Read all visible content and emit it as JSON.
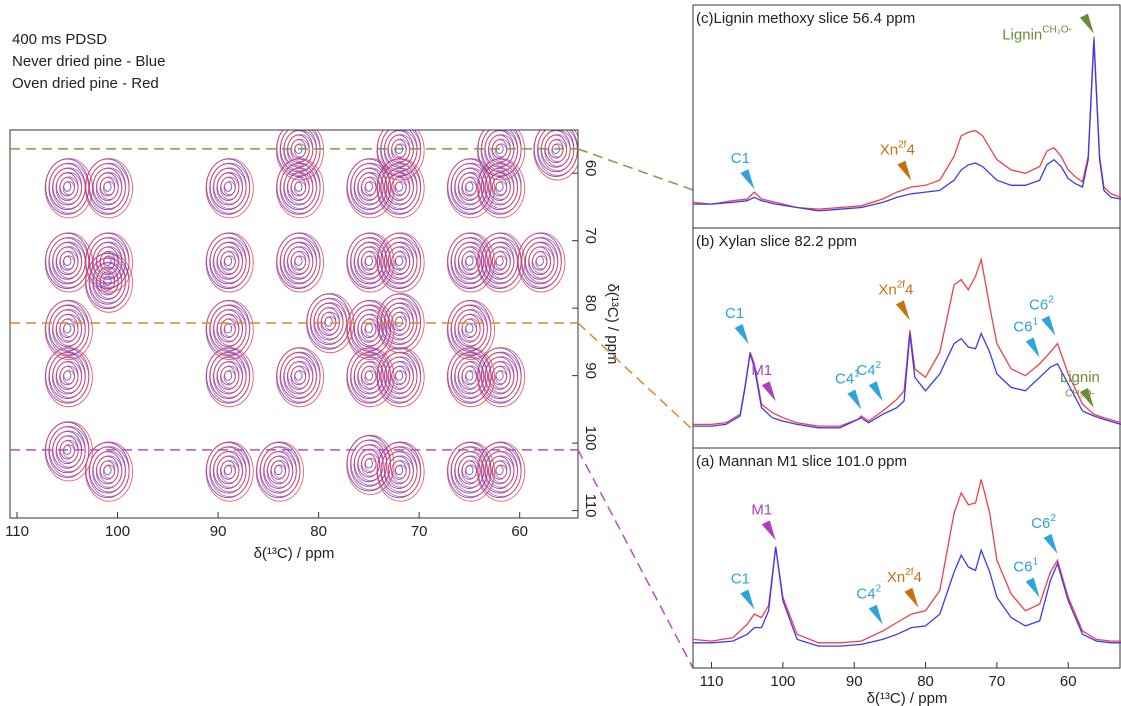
{
  "chart_data": [
    {
      "type": "contour",
      "title_lines": [
        "400 ms PDSD",
        "Never dried pine - Blue",
        "Oven dried pine - Red"
      ],
      "xlabel": "δ(¹³C) / ppm",
      "ylabel": "δ(¹³C) / ppm",
      "xlim": [
        110.7,
        54.2
      ],
      "ylim": [
        53.6,
        111.1
      ],
      "xticks": [
        110,
        100,
        90,
        80,
        70,
        60
      ],
      "yticks": [
        60,
        70,
        80,
        90,
        100,
        110
      ],
      "colors": [
        "#3b3bf0",
        "#f0404a"
      ],
      "x": [
        105,
        101,
        105,
        101,
        105,
        105,
        101,
        89,
        89,
        89,
        89,
        82,
        82,
        82,
        75,
        75,
        75,
        75,
        72,
        72,
        72,
        72,
        79,
        65,
        62,
        65,
        62,
        65,
        62,
        65,
        58,
        56.4,
        105,
        101,
        89,
        84,
        75,
        72,
        65,
        62,
        82,
        72,
        62
      ],
      "y": [
        62,
        62,
        73,
        73,
        83,
        90,
        76,
        62,
        73,
        83,
        90,
        62,
        73,
        90,
        62,
        73,
        83,
        90,
        62,
        73,
        90,
        82,
        82,
        62,
        62,
        73,
        73,
        83,
        90,
        90,
        73,
        56.4,
        101,
        104,
        104,
        104,
        103,
        104,
        104,
        104,
        56.4,
        56.4,
        56.4
      ],
      "slices": [
        {
          "value": 56.4,
          "color": "#7a9a45"
        },
        {
          "value": 82.2,
          "color": "#d9892e"
        },
        {
          "value": 101.0,
          "color": "#b64fc4"
        }
      ]
    },
    {
      "type": "line",
      "title": "(c)Lignin methoxy slice 56.4 ppm",
      "xlim": [
        112.6,
        52.6
      ],
      "ylim": [
        -12,
        108
      ],
      "x": [
        112.6,
        110,
        107,
        105,
        104,
        103,
        101,
        98,
        95,
        92,
        89,
        86,
        84,
        82,
        80,
        78,
        76,
        75,
        74,
        73,
        72,
        71,
        70,
        68,
        66,
        64,
        63,
        62,
        61,
        60,
        59,
        58,
        57.2,
        56.4,
        55.6,
        55,
        54,
        52.6
      ],
      "series": [
        {
          "color": "#f0404a",
          "values": [
            3,
            2,
            4,
            5,
            9,
            5,
            3,
            0,
            -1,
            0,
            1,
            5,
            9,
            12,
            13,
            16,
            30,
            42,
            44,
            45,
            42,
            35,
            28,
            22,
            20,
            24,
            33,
            35,
            30,
            22,
            18,
            15,
            30,
            100,
            30,
            12,
            8,
            6
          ]
        },
        {
          "color": "#3b3bf0",
          "values": [
            2,
            2,
            3,
            4,
            6,
            4,
            2,
            0,
            -2,
            -1,
            0,
            3,
            6,
            8,
            9,
            10,
            16,
            22,
            25,
            26,
            24,
            20,
            16,
            13,
            13,
            16,
            25,
            28,
            24,
            17,
            14,
            12,
            28,
            98,
            28,
            10,
            6,
            5
          ]
        }
      ],
      "annotations": [
        {
          "text": "C1",
          "color": "#2fa3dc",
          "x": 104,
          "y": 9
        },
        {
          "text": "Xn",
          "sup": "2f",
          "post": "4",
          "color": "#c8700f",
          "x": 82,
          "y": 14
        },
        {
          "text": "Lignin",
          "sup": "CH₃O-",
          "color": "#6b8c3a",
          "x": 56.4,
          "y": 100
        }
      ]
    },
    {
      "type": "line",
      "title": "(b) Xylan slice 82.2 ppm",
      "xlim": [
        112.6,
        52.6
      ],
      "ylim": [
        -12,
        108
      ],
      "x": [
        112.6,
        110,
        108,
        106,
        105.3,
        104.6,
        104,
        103,
        101.5,
        100,
        98,
        95,
        92,
        89.5,
        89,
        88,
        86,
        84,
        83,
        82.2,
        81.5,
        80,
        78,
        76,
        75,
        74,
        73,
        72.2,
        71,
        70,
        68,
        66,
        64,
        62.5,
        61.5,
        60,
        58,
        56.4,
        55,
        52.6
      ],
      "series": [
        {
          "color": "#f0404a",
          "values": [
            2,
            2,
            3,
            8,
            25,
            45,
            38,
            14,
            9,
            6,
            3,
            1,
            1,
            5,
            7,
            4,
            10,
            17,
            22,
            58,
            35,
            30,
            45,
            85,
            88,
            82,
            90,
            100,
            72,
            50,
            35,
            31,
            38,
            45,
            50,
            32,
            14,
            8,
            6,
            3
          ]
        },
        {
          "color": "#3b3bf0",
          "values": [
            1,
            1,
            2,
            7,
            24,
            44,
            36,
            12,
            6,
            4,
            2,
            0,
            0,
            5,
            6,
            3,
            8,
            12,
            16,
            56,
            30,
            22,
            32,
            50,
            53,
            48,
            47,
            56,
            45,
            32,
            24,
            22,
            30,
            36,
            38,
            26,
            10,
            7,
            5,
            2
          ]
        }
      ],
      "annotations": [
        {
          "text": "C1",
          "color": "#2fa3dc",
          "x": 104.8,
          "y": 48
        },
        {
          "text": "M1",
          "color": "#b03fc0",
          "x": 101,
          "y": 14
        },
        {
          "text": "C4",
          "sup": "1",
          "color": "#2fa3dc",
          "x": 89,
          "y": 9
        },
        {
          "text": "C4",
          "sup": "2",
          "color": "#2fa3dc",
          "x": 86,
          "y": 14
        },
        {
          "text": "Xn",
          "sup": "2f",
          "post": "4",
          "color": "#c8700f",
          "x": 82.2,
          "y": 62
        },
        {
          "text": "C6",
          "sup": "1",
          "color": "#2fa3dc",
          "x": 64,
          "y": 40
        },
        {
          "text": "C6",
          "sup": "2",
          "color": "#2fa3dc",
          "x": 61.8,
          "y": 53
        },
        {
          "text": "Lignin",
          "sub": "CH₃O-",
          "color": "#6b8c3a",
          "x": 56.4,
          "y": 10
        }
      ]
    },
    {
      "type": "line",
      "title": "(a) Mannan M1 slice 101.0 ppm",
      "xlabel": "δ(¹³C) / ppm",
      "xticks": [
        110,
        100,
        90,
        80,
        70,
        60
      ],
      "xlim": [
        112.6,
        52.6
      ],
      "ylim": [
        -12,
        108
      ],
      "x": [
        112.6,
        110,
        107,
        105,
        104,
        103,
        102,
        101,
        100,
        98,
        95,
        92,
        89,
        86,
        84,
        82,
        80,
        78,
        76,
        75,
        74,
        73,
        72.2,
        71,
        70,
        68,
        66,
        64,
        62.5,
        61.5,
        60,
        58,
        56,
        54,
        52.6
      ],
      "series": [
        {
          "color": "#f0404a",
          "values": [
            5,
            4,
            6,
            14,
            20,
            18,
            25,
            60,
            30,
            8,
            3,
            3,
            4,
            10,
            15,
            20,
            22,
            34,
            80,
            92,
            85,
            86,
            100,
            80,
            52,
            32,
            22,
            26,
            45,
            52,
            30,
            10,
            5,
            4,
            4
          ]
        },
        {
          "color": "#3b3bf0",
          "values": [
            3,
            3,
            4,
            8,
            12,
            12,
            22,
            60,
            28,
            5,
            1,
            1,
            2,
            5,
            8,
            12,
            13,
            20,
            45,
            55,
            48,
            46,
            58,
            45,
            30,
            18,
            13,
            16,
            40,
            50,
            28,
            8,
            4,
            3,
            3
          ]
        }
      ],
      "annotations": [
        {
          "text": "C1",
          "color": "#2fa3dc",
          "x": 104,
          "y": 21
        },
        {
          "text": "M1",
          "color": "#b03fc0",
          "x": 101,
          "y": 62
        },
        {
          "text": "C4",
          "sup": "2",
          "color": "#2fa3dc",
          "x": 86,
          "y": 12
        },
        {
          "text": "Xn",
          "sup": "2f",
          "post": "4",
          "color": "#c8700f",
          "x": 81,
          "y": 22
        },
        {
          "text": "C6",
          "sup": "1",
          "color": "#2fa3dc",
          "x": 64,
          "y": 28
        },
        {
          "text": "C6",
          "sup": "2",
          "color": "#2fa3dc",
          "x": 61.5,
          "y": 54
        }
      ]
    }
  ]
}
